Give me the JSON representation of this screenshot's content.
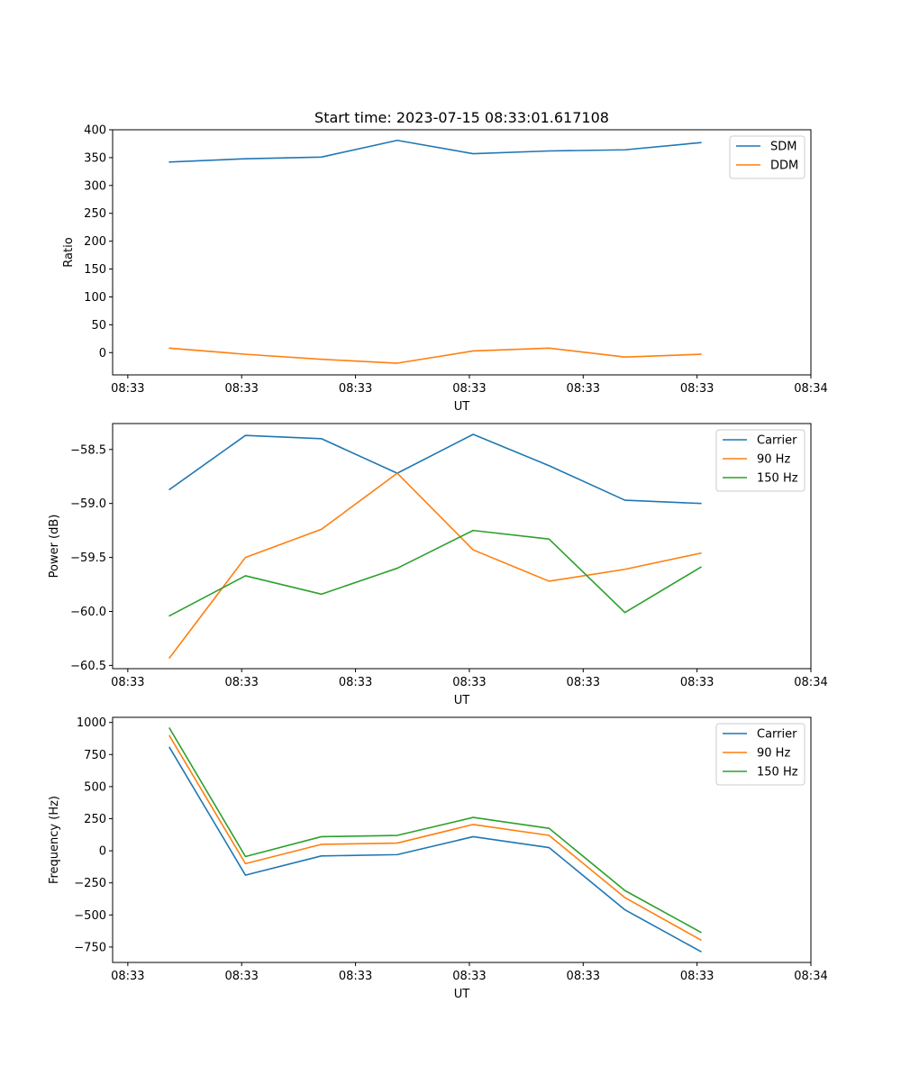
{
  "chart_data": [
    {
      "type": "line",
      "title": "Start time: 2023-07-15 08:33:01.617108",
      "xlabel": "UT",
      "ylabel": "Ratio",
      "x": [
        1,
        2,
        3,
        4,
        5,
        6,
        7,
        8
      ],
      "xlim": [
        0.25,
        9.45
      ],
      "xticks": [
        0.45,
        1.95,
        3.45,
        4.95,
        6.45,
        7.95,
        9.45
      ],
      "xtick_labels": [
        "08:33",
        "08:33",
        "08:33",
        "08:33",
        "08:33",
        "08:33",
        "08:34"
      ],
      "ylim": [
        -40,
        400
      ],
      "yticks": [
        0,
        50,
        100,
        150,
        200,
        250,
        300,
        350,
        400
      ],
      "ytick_labels": [
        "0",
        "50",
        "100",
        "150",
        "200",
        "250",
        "300",
        "350",
        "400"
      ],
      "legend": "top-right",
      "series": [
        {
          "name": "SDM",
          "color": "#1f77b4",
          "values": [
            342,
            348,
            351,
            381,
            357,
            362,
            364,
            377
          ]
        },
        {
          "name": "DDM",
          "color": "#ff7f0e",
          "values": [
            8,
            -3,
            -12,
            -19,
            3,
            8,
            -8,
            -3
          ]
        }
      ]
    },
    {
      "type": "line",
      "xlabel": "UT",
      "ylabel": "Power (dB)",
      "x": [
        1,
        2,
        3,
        4,
        5,
        6,
        7,
        8
      ],
      "xlim": [
        0.25,
        9.45
      ],
      "xticks": [
        0.45,
        1.95,
        3.45,
        4.95,
        6.45,
        7.95,
        9.45
      ],
      "xtick_labels": [
        "08:33",
        "08:33",
        "08:33",
        "08:33",
        "08:33",
        "08:33",
        "08:34"
      ],
      "ylim": [
        -60.53,
        -58.26
      ],
      "yticks": [
        -60.5,
        -60.0,
        -59.5,
        -59.0,
        -58.5
      ],
      "ytick_labels": [
        "−60.5",
        "−60.0",
        "−59.5",
        "−59.0",
        "−58.5"
      ],
      "legend": "top-right",
      "series": [
        {
          "name": "Carrier",
          "color": "#1f77b4",
          "values": [
            -58.87,
            -58.37,
            -58.4,
            -58.72,
            -58.36,
            -58.65,
            -58.97,
            -59.0
          ]
        },
        {
          "name": "90 Hz",
          "color": "#ff7f0e",
          "values": [
            -60.43,
            -59.5,
            -59.24,
            -58.72,
            -59.43,
            -59.72,
            -59.61,
            -59.46
          ]
        },
        {
          "name": "150 Hz",
          "color": "#2ca02c",
          "values": [
            -60.04,
            -59.67,
            -59.84,
            -59.6,
            -59.25,
            -59.33,
            -60.01,
            -59.59
          ]
        }
      ]
    },
    {
      "type": "line",
      "xlabel": "UT",
      "ylabel": "Frequency (Hz)",
      "x": [
        1,
        2,
        3,
        4,
        5,
        6,
        7,
        8
      ],
      "xlim": [
        0.25,
        9.45
      ],
      "xticks": [
        0.45,
        1.95,
        3.45,
        4.95,
        6.45,
        7.95,
        9.45
      ],
      "xtick_labels": [
        "08:33",
        "08:33",
        "08:33",
        "08:33",
        "08:33",
        "08:33",
        "08:34"
      ],
      "ylim": [
        -870,
        1040
      ],
      "yticks": [
        -750,
        -500,
        -250,
        0,
        250,
        500,
        750,
        1000
      ],
      "ytick_labels": [
        "−750",
        "−500",
        "−250",
        "0",
        "250",
        "500",
        "750",
        "1000"
      ],
      "legend": "top-right",
      "series": [
        {
          "name": "Carrier",
          "color": "#1f77b4",
          "values": [
            805,
            -190,
            -40,
            -30,
            110,
            25,
            -460,
            -785
          ]
        },
        {
          "name": "90 Hz",
          "color": "#ff7f0e",
          "values": [
            895,
            -100,
            50,
            60,
            205,
            120,
            -365,
            -695
          ]
        },
        {
          "name": "150 Hz",
          "color": "#2ca02c",
          "values": [
            955,
            -45,
            110,
            120,
            260,
            175,
            -310,
            -635
          ]
        }
      ]
    }
  ]
}
